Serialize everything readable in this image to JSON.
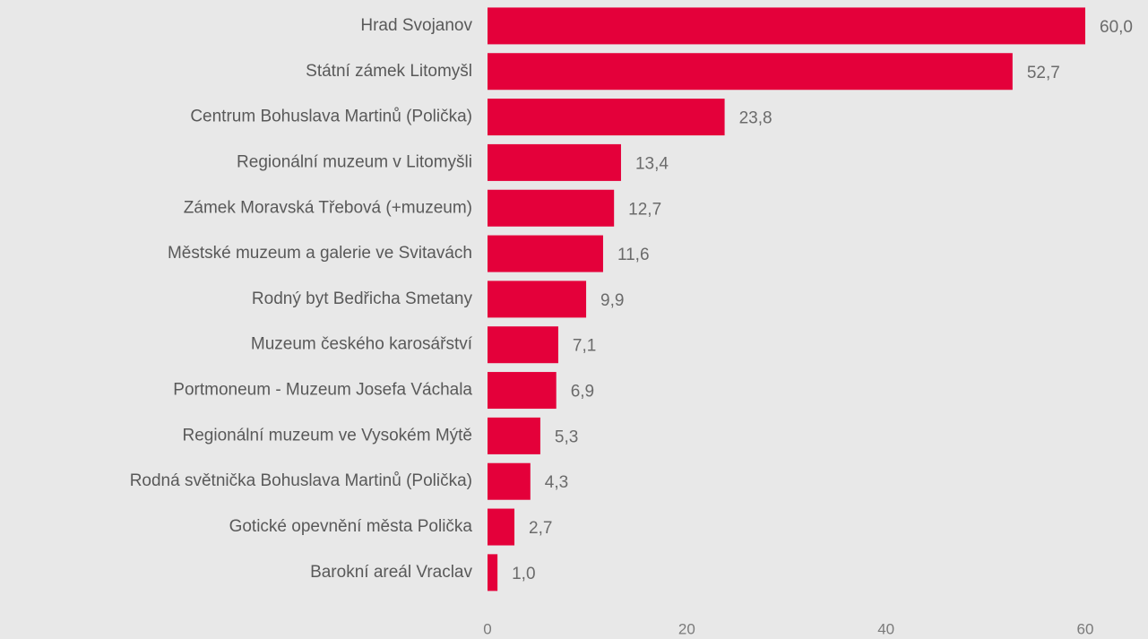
{
  "chart_data": {
    "type": "bar",
    "orientation": "horizontal",
    "categories": [
      "Hrad Svojanov",
      "Státní zámek Litomyšl",
      "Centrum Bohuslava Martinů (Polička)",
      "Regionální muzeum v Litomyšli",
      "Zámek Moravská Třebová (+muzeum)",
      "Městské muzeum a galerie ve Svitavách",
      "Rodný byt Bedřicha Smetany",
      "Muzeum českého karosářství",
      "Portmoneum - Muzeum Josefa Váchala",
      "Regionální muzeum ve Vysokém Mýtě",
      "Rodná světnička Bohuslava Martinů (Polička)",
      "Gotické opevnění města Polička",
      "Barokní areál Vraclav"
    ],
    "values": [
      60.0,
      52.7,
      23.8,
      13.4,
      12.7,
      11.6,
      9.9,
      7.1,
      6.9,
      5.3,
      4.3,
      2.7,
      1.0
    ],
    "value_labels": [
      "60,0",
      "52,7",
      "23,8",
      "13,4",
      "12,7",
      "11,6",
      "9,9",
      "7,1",
      "6,9",
      "5,3",
      "4,3",
      "2,7",
      "1,0"
    ],
    "color": "#e4003a",
    "xlim": [
      0,
      60
    ],
    "xticks": [
      0,
      20,
      40,
      60
    ],
    "grid": false
  }
}
